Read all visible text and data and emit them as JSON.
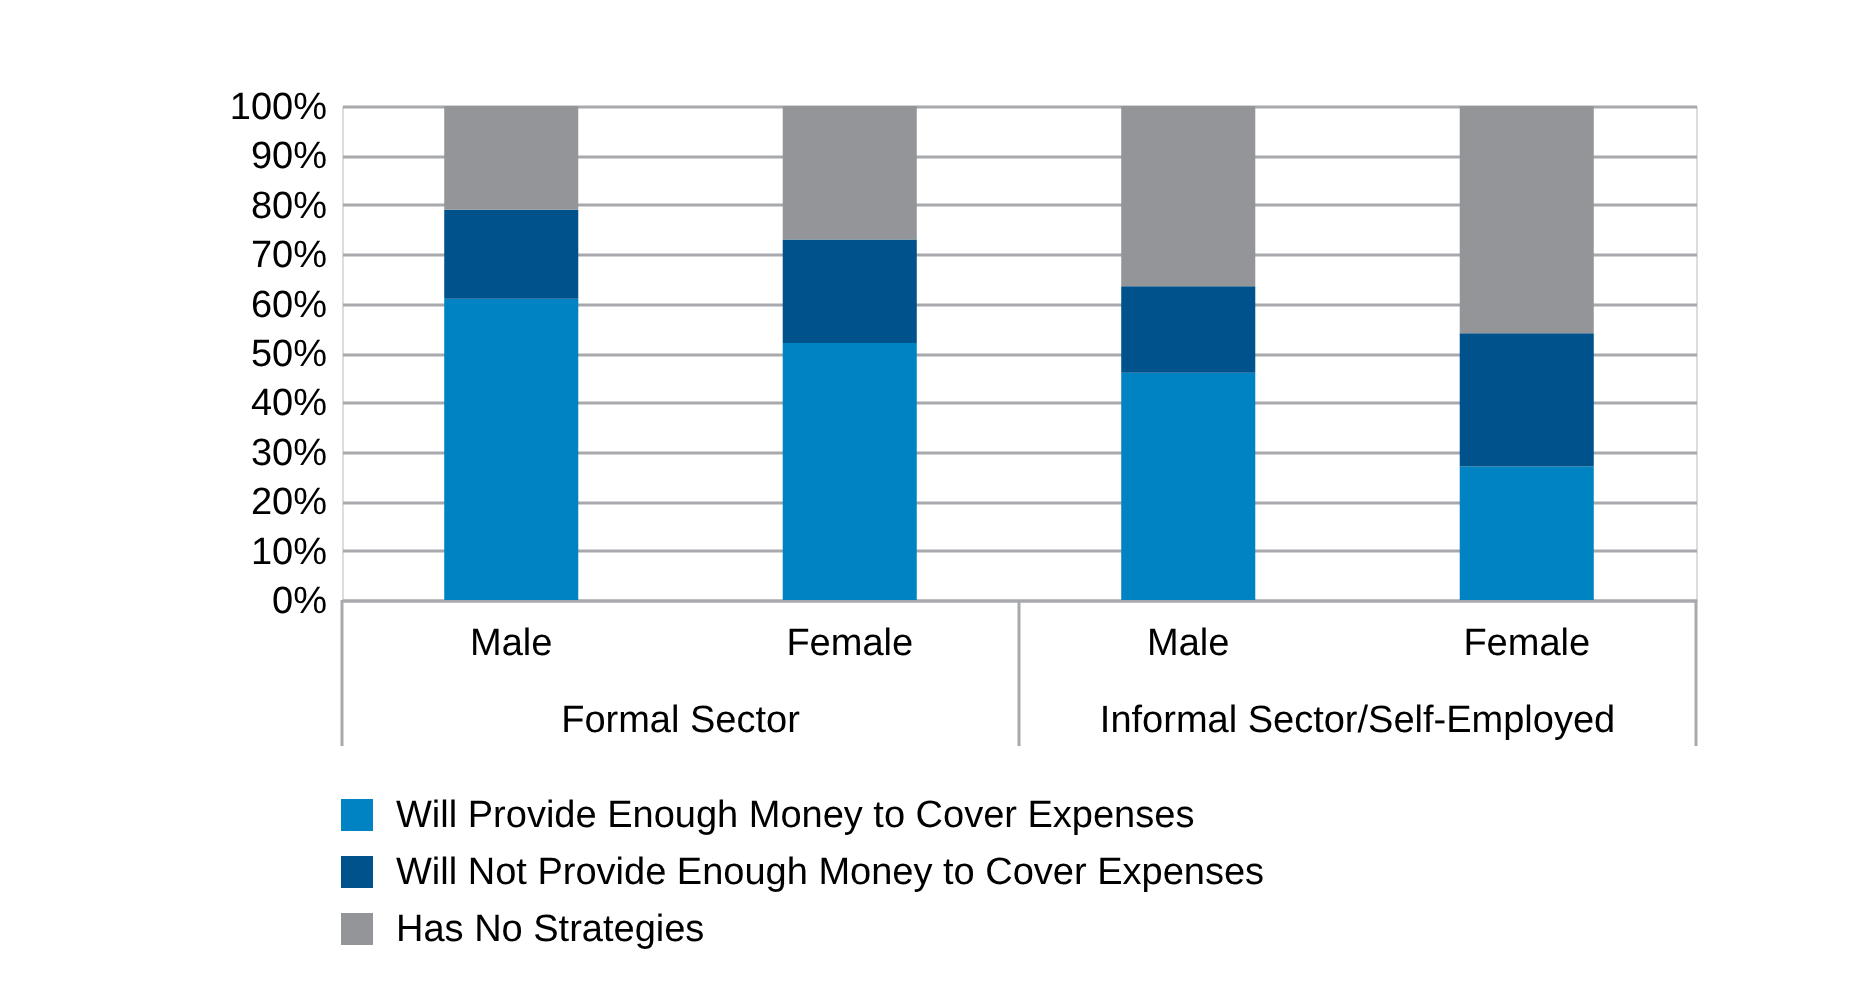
{
  "chart_data": {
    "type": "bar",
    "stacked": true,
    "categories": [
      "Male",
      "Female",
      "Male",
      "Female"
    ],
    "series": [
      {
        "name": "Will Provide Enough Money to Cover Expenses",
        "color": "#0083c2",
        "values": [
          61,
          52,
          46,
          27
        ]
      },
      {
        "name": "Will Not Provide Enough Money to Cover Expenses",
        "color": "#00528c",
        "values": [
          18,
          21,
          17.5,
          27
        ]
      },
      {
        "name": "Has No Strategies",
        "color": "#939598",
        "values": [
          21,
          27,
          36.5,
          46
        ]
      }
    ],
    "ylim": [
      0,
      100
    ],
    "yticks": [
      {
        "value": 0,
        "label": "0%"
      },
      {
        "value": 10,
        "label": "10%"
      },
      {
        "value": 20,
        "label": "20%"
      },
      {
        "value": 30,
        "label": "30%"
      },
      {
        "value": 40,
        "label": "40%"
      },
      {
        "value": 50,
        "label": "50%"
      },
      {
        "value": 60,
        "label": "60%"
      },
      {
        "value": 70,
        "label": "70%"
      },
      {
        "value": 80,
        "label": "80%"
      },
      {
        "value": 90,
        "label": "90%"
      },
      {
        "value": 100,
        "label": "100%"
      }
    ],
    "annotations": [
      "Formal Sector",
      "Informal Sector/Self-Employed"
    ],
    "grid": "y",
    "legend": "bottom left"
  }
}
